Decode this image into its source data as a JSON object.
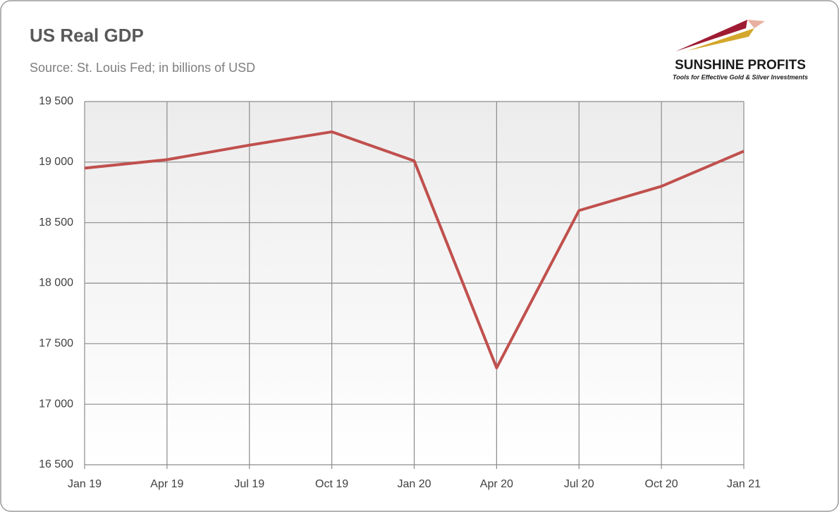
{
  "chart_data": {
    "type": "line",
    "title": "US Real GDP",
    "subtitle": "Source: St. Louis Fed; in billions of USD",
    "logo": {
      "name": "SUNSHINE PROFITS",
      "tagline": "Tools for Effective Gold & Silver Investments"
    },
    "categories": [
      "Jan 19",
      "Apr 19",
      "Jul 19",
      "Oct 19",
      "Jan 20",
      "Apr 20",
      "Jul 20",
      "Oct 20",
      "Jan 21"
    ],
    "values": [
      18950,
      19020,
      19140,
      19250,
      19010,
      17300,
      18600,
      18800,
      19090
    ],
    "color": "#c0504d",
    "ylim": [
      16500,
      19500
    ],
    "yticks": [
      {
        "value": 16500,
        "label": "16 500"
      },
      {
        "value": 17000,
        "label": "17 000"
      },
      {
        "value": 17500,
        "label": "17 500"
      },
      {
        "value": 18000,
        "label": "18 000"
      },
      {
        "value": 18500,
        "label": "18 500"
      },
      {
        "value": 19000,
        "label": "19 000"
      },
      {
        "value": 19500,
        "label": "19 500"
      }
    ],
    "grid": true
  }
}
